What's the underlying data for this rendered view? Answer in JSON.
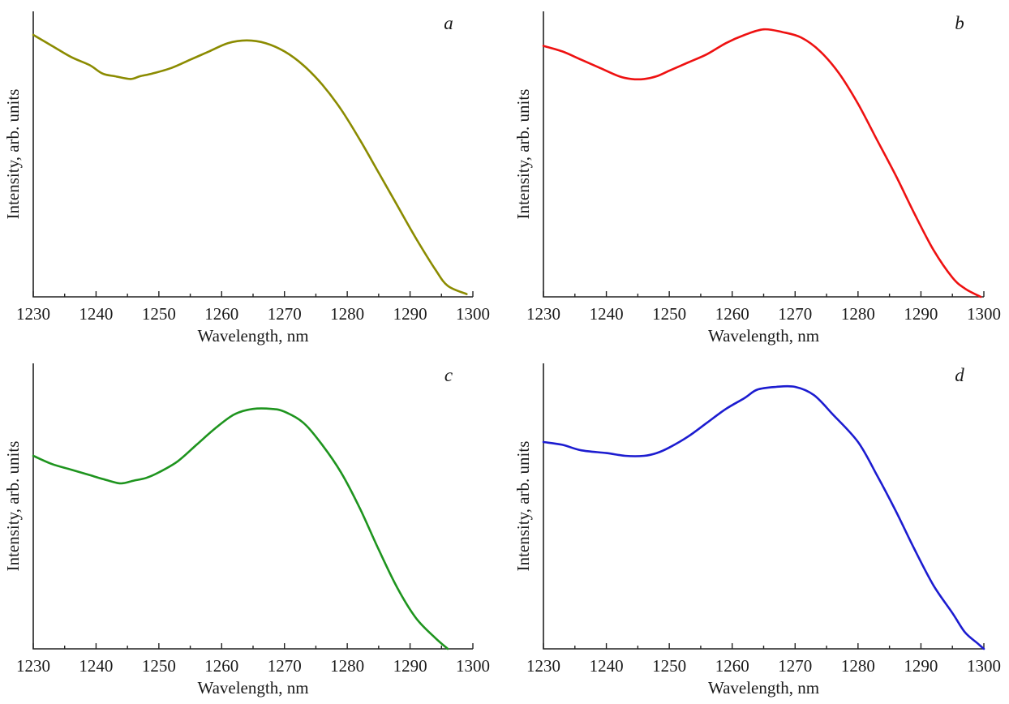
{
  "chart_data": [
    {
      "type": "line",
      "panel_label": "a",
      "xlabel": "Wavelength, nm",
      "ylabel": "Intensity, arb. units",
      "xlim": [
        1230,
        1300
      ],
      "ylim": [
        0,
        1
      ],
      "x_ticks": [
        1230,
        1240,
        1250,
        1260,
        1270,
        1280,
        1290,
        1300
      ],
      "color": "#8b8b00",
      "x": [
        1230,
        1233,
        1236,
        1239,
        1241,
        1243,
        1245.5,
        1247,
        1249,
        1252,
        1255,
        1258,
        1261,
        1264,
        1267,
        1270,
        1273,
        1276,
        1279,
        1282,
        1285,
        1288,
        1291,
        1294,
        1296,
        1299
      ],
      "y": [
        0.95,
        0.91,
        0.87,
        0.84,
        0.81,
        0.8,
        0.79,
        0.8,
        0.81,
        0.83,
        0.86,
        0.89,
        0.92,
        0.93,
        0.92,
        0.89,
        0.84,
        0.77,
        0.68,
        0.57,
        0.45,
        0.33,
        0.21,
        0.1,
        0.04,
        0.01
      ]
    },
    {
      "type": "line",
      "panel_label": "b",
      "xlabel": "Wavelength, nm",
      "ylabel": "Intensity, arb. units",
      "xlim": [
        1230,
        1300
      ],
      "ylim": [
        0,
        1
      ],
      "x_ticks": [
        1230,
        1240,
        1250,
        1260,
        1270,
        1280,
        1290,
        1300
      ],
      "color": "#ee1111",
      "x": [
        1230,
        1233,
        1236,
        1239,
        1242,
        1244,
        1246,
        1248,
        1250,
        1253,
        1256,
        1259,
        1262,
        1265,
        1268,
        1271,
        1274,
        1277,
        1280,
        1283,
        1286,
        1289,
        1292,
        1295,
        1297,
        1299.5
      ],
      "y": [
        0.91,
        0.89,
        0.86,
        0.83,
        0.8,
        0.79,
        0.79,
        0.8,
        0.82,
        0.85,
        0.88,
        0.92,
        0.95,
        0.97,
        0.96,
        0.94,
        0.89,
        0.81,
        0.7,
        0.57,
        0.44,
        0.3,
        0.17,
        0.07,
        0.03,
        0.0
      ]
    },
    {
      "type": "line",
      "panel_label": "c",
      "xlabel": "Wavelength, nm",
      "ylabel": "Intensity, arb. units",
      "xlim": [
        1230,
        1300
      ],
      "ylim": [
        0,
        1
      ],
      "x_ticks": [
        1230,
        1240,
        1250,
        1260,
        1270,
        1280,
        1290,
        1300
      ],
      "color": "#1e941e",
      "x": [
        1230,
        1233,
        1236,
        1239,
        1242,
        1244,
        1246,
        1248,
        1250,
        1253,
        1256,
        1259,
        1262,
        1265,
        1268,
        1270,
        1273,
        1276,
        1279,
        1282,
        1285,
        1288,
        1291,
        1294,
        1296
      ],
      "y": [
        0.7,
        0.67,
        0.65,
        0.63,
        0.61,
        0.6,
        0.61,
        0.62,
        0.64,
        0.68,
        0.74,
        0.8,
        0.85,
        0.87,
        0.87,
        0.86,
        0.82,
        0.74,
        0.64,
        0.51,
        0.36,
        0.22,
        0.11,
        0.04,
        0.0
      ]
    },
    {
      "type": "line",
      "panel_label": "d",
      "xlabel": "Wavelength, nm",
      "ylabel": "Intensity, arb. units",
      "xlim": [
        1230,
        1300
      ],
      "ylim": [
        0,
        1
      ],
      "x_ticks": [
        1230,
        1240,
        1250,
        1260,
        1270,
        1280,
        1290,
        1300
      ],
      "color": "#1c1cd0",
      "x": [
        1230,
        1233,
        1236,
        1240,
        1243,
        1246,
        1248,
        1250,
        1253,
        1256,
        1259,
        1262,
        1264,
        1267,
        1270,
        1273,
        1276,
        1280,
        1283,
        1286,
        1289,
        1292,
        1295,
        1297,
        1299,
        1300
      ],
      "y": [
        0.75,
        0.74,
        0.72,
        0.71,
        0.7,
        0.7,
        0.71,
        0.73,
        0.77,
        0.82,
        0.87,
        0.91,
        0.94,
        0.95,
        0.95,
        0.92,
        0.85,
        0.75,
        0.63,
        0.5,
        0.36,
        0.23,
        0.13,
        0.06,
        0.02,
        0.0
      ]
    }
  ]
}
